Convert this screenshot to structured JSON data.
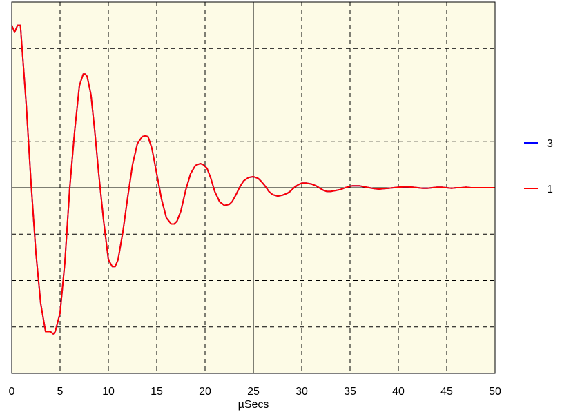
{
  "chart_data": {
    "type": "line",
    "xlabel": "µSecs",
    "ylabel": "",
    "xlim": [
      0,
      50
    ],
    "ylim": [
      -4,
      4
    ],
    "x_ticks": [
      0,
      5,
      10,
      15,
      20,
      25,
      30,
      35,
      40,
      45,
      50
    ],
    "y_grid": [
      -4,
      -3,
      -2,
      -1,
      0,
      1,
      2,
      3,
      4
    ],
    "grid": true,
    "grid_style": "dashed",
    "plot_background": "#fdfbe6",
    "legend_position": "right",
    "series": [
      {
        "name": "3",
        "color": "#0000ff",
        "x": [
          0,
          0.3,
          0.6,
          0.9,
          1.0,
          1.5,
          2.0,
          2.5,
          3.0,
          3.5,
          4.0,
          4.3,
          4.5,
          5.0,
          5.5,
          6.0,
          6.5,
          7.0,
          7.4,
          7.6,
          7.8,
          8.2,
          8.6,
          9.0,
          9.5,
          10.0,
          10.4,
          10.7,
          11.0,
          11.5,
          12.0,
          12.5,
          13.0,
          13.5,
          13.8,
          14.1,
          14.5,
          15.0,
          15.5,
          16.0,
          16.5,
          16.8,
          17.1,
          17.5,
          18.0,
          18.5,
          19.0,
          19.5,
          19.8,
          20.2,
          20.6,
          21.0,
          21.5,
          22.0,
          22.5,
          22.8,
          23.2,
          23.6,
          24.0,
          24.5,
          25.0,
          25.5,
          25.8,
          26.2,
          26.6,
          27.0,
          27.5,
          28.0,
          28.5,
          28.8,
          29.2,
          29.6,
          30.0,
          30.5,
          31.0,
          31.5,
          31.8,
          32.2,
          32.6,
          33.0,
          33.5,
          34.0,
          34.5,
          34.8,
          35.2,
          35.6,
          36.0,
          36.5,
          37.0,
          37.5,
          38.0,
          38.5,
          39.0,
          39.5,
          40.0,
          40.5,
          41.0,
          41.5,
          42.0,
          42.5,
          43.0,
          43.5,
          44.0,
          44.5,
          45.0,
          45.5,
          46.0,
          46.5,
          47.0,
          47.5,
          48.0,
          48.5,
          49.0,
          49.5,
          50.0
        ],
        "y": [
          3.5,
          3.35,
          3.5,
          3.5,
          3.2,
          1.8,
          0.1,
          -1.4,
          -2.5,
          -3.1,
          -3.1,
          -3.15,
          -3.1,
          -2.7,
          -1.6,
          0.0,
          1.2,
          2.2,
          2.45,
          2.45,
          2.4,
          2.0,
          1.2,
          0.3,
          -0.7,
          -1.55,
          -1.7,
          -1.7,
          -1.55,
          -0.95,
          -0.2,
          0.5,
          0.95,
          1.1,
          1.12,
          1.1,
          0.85,
          0.3,
          -0.25,
          -0.65,
          -0.78,
          -0.78,
          -0.72,
          -0.5,
          -0.05,
          0.3,
          0.48,
          0.52,
          0.5,
          0.42,
          0.2,
          -0.08,
          -0.3,
          -0.38,
          -0.36,
          -0.3,
          -0.15,
          0.02,
          0.15,
          0.22,
          0.24,
          0.2,
          0.14,
          0.04,
          -0.08,
          -0.15,
          -0.18,
          -0.16,
          -0.12,
          -0.08,
          0.0,
          0.06,
          0.1,
          0.1,
          0.08,
          0.04,
          0.0,
          -0.05,
          -0.08,
          -0.08,
          -0.06,
          -0.04,
          0.0,
          0.02,
          0.04,
          0.04,
          0.04,
          0.02,
          0.0,
          -0.02,
          -0.03,
          -0.02,
          -0.01,
          0.0,
          0.01,
          0.02,
          0.02,
          0.01,
          0.0,
          -0.01,
          -0.01,
          0.0,
          0.01,
          0.01,
          0.0,
          -0.01,
          0.0,
          0.0,
          0.01,
          0.0,
          0.0,
          0.0,
          0.0,
          0.0,
          0.0
        ]
      },
      {
        "name": "1",
        "color": "#ff0000",
        "x": [
          0,
          0.3,
          0.6,
          0.9,
          1.0,
          1.5,
          2.0,
          2.5,
          3.0,
          3.5,
          4.0,
          4.3,
          4.5,
          5.0,
          5.5,
          6.0,
          6.5,
          7.0,
          7.4,
          7.6,
          7.8,
          8.2,
          8.6,
          9.0,
          9.5,
          10.0,
          10.4,
          10.7,
          11.0,
          11.5,
          12.0,
          12.5,
          13.0,
          13.5,
          13.8,
          14.1,
          14.5,
          15.0,
          15.5,
          16.0,
          16.5,
          16.8,
          17.1,
          17.5,
          18.0,
          18.5,
          19.0,
          19.5,
          19.8,
          20.2,
          20.6,
          21.0,
          21.5,
          22.0,
          22.5,
          22.8,
          23.2,
          23.6,
          24.0,
          24.5,
          25.0,
          25.5,
          25.8,
          26.2,
          26.6,
          27.0,
          27.5,
          28.0,
          28.5,
          28.8,
          29.2,
          29.6,
          30.0,
          30.5,
          31.0,
          31.5,
          31.8,
          32.2,
          32.6,
          33.0,
          33.5,
          34.0,
          34.5,
          34.8,
          35.2,
          35.6,
          36.0,
          36.5,
          37.0,
          37.5,
          38.0,
          38.5,
          39.0,
          39.5,
          40.0,
          40.5,
          41.0,
          41.5,
          42.0,
          42.5,
          43.0,
          43.5,
          44.0,
          44.5,
          45.0,
          45.5,
          46.0,
          46.5,
          47.0,
          47.5,
          48.0,
          48.5,
          49.0,
          49.5,
          50.0
        ],
        "y": [
          3.5,
          3.35,
          3.5,
          3.5,
          3.2,
          1.8,
          0.1,
          -1.4,
          -2.5,
          -3.1,
          -3.1,
          -3.15,
          -3.1,
          -2.7,
          -1.6,
          0.0,
          1.2,
          2.2,
          2.45,
          2.45,
          2.4,
          2.0,
          1.2,
          0.3,
          -0.7,
          -1.55,
          -1.7,
          -1.7,
          -1.55,
          -0.95,
          -0.2,
          0.5,
          0.95,
          1.1,
          1.12,
          1.1,
          0.85,
          0.3,
          -0.25,
          -0.65,
          -0.78,
          -0.78,
          -0.72,
          -0.5,
          -0.05,
          0.3,
          0.48,
          0.52,
          0.5,
          0.42,
          0.2,
          -0.08,
          -0.3,
          -0.38,
          -0.36,
          -0.3,
          -0.15,
          0.02,
          0.15,
          0.22,
          0.24,
          0.2,
          0.14,
          0.04,
          -0.08,
          -0.15,
          -0.18,
          -0.16,
          -0.12,
          -0.08,
          0.0,
          0.06,
          0.1,
          0.1,
          0.08,
          0.04,
          0.0,
          -0.05,
          -0.08,
          -0.08,
          -0.06,
          -0.04,
          0.0,
          0.02,
          0.04,
          0.04,
          0.04,
          0.02,
          0.0,
          -0.02,
          -0.03,
          -0.02,
          -0.01,
          0.0,
          0.01,
          0.02,
          0.02,
          0.01,
          0.0,
          -0.01,
          -0.01,
          0.0,
          0.01,
          0.01,
          0.0,
          -0.01,
          0.0,
          0.0,
          0.01,
          0.0,
          0.0,
          0.0,
          0.0,
          0.0,
          0.0
        ]
      }
    ]
  }
}
